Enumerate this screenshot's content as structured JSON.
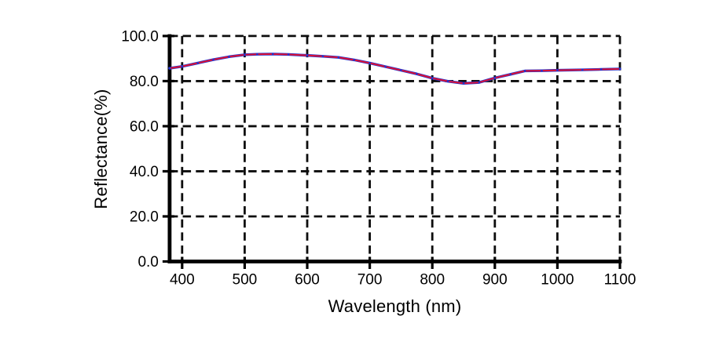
{
  "chart_data": {
    "type": "line",
    "title": "",
    "xlabel": "Wavelength (nm)",
    "ylabel": "Reflectance(%)",
    "xlim": [
      380,
      1100
    ],
    "ylim": [
      0,
      100
    ],
    "x_ticks": [
      400,
      500,
      600,
      700,
      800,
      900,
      1000,
      1100
    ],
    "x_tick_labels": [
      "400",
      "500",
      "600",
      "700",
      "800",
      "900",
      "1000",
      "1100"
    ],
    "y_ticks": [
      0,
      20,
      40,
      60,
      80,
      100
    ],
    "y_tick_labels": [
      "0.0",
      "20.0",
      "40.0",
      "60.0",
      "80.0",
      "100.0"
    ],
    "grid": {
      "style": "dashed",
      "color": "#0d0d0d"
    },
    "axes_color": "#000000",
    "background": "#ffffff",
    "legend": {
      "visible": false
    },
    "x": [
      380,
      400,
      425,
      450,
      475,
      500,
      520,
      545,
      570,
      600,
      625,
      650,
      675,
      700,
      725,
      750,
      775,
      800,
      825,
      850,
      875,
      900,
      925,
      948,
      975,
      1000,
      1040,
      1070,
      1100
    ],
    "series": [
      {
        "name": "reflectance-curve-blue",
        "color": "#2633cc",
        "line_style": "solid",
        "line_width": 3.4,
        "values": [
          85.7,
          86.5,
          88.0,
          89.5,
          90.8,
          91.7,
          91.9,
          92.0,
          91.8,
          91.4,
          91.0,
          90.5,
          89.4,
          88.0,
          86.4,
          84.8,
          83.2,
          81.3,
          79.9,
          79.0,
          79.4,
          81.4,
          83.0,
          84.5,
          84.6,
          84.8,
          85.0,
          85.2,
          85.4
        ]
      },
      {
        "name": "reflectance-curve-red",
        "color": "#e01030",
        "line_style": "solid",
        "line_width": 1.9,
        "values": [
          85.7,
          86.5,
          88.0,
          89.5,
          90.8,
          91.7,
          91.9,
          92.0,
          91.8,
          91.4,
          91.0,
          90.5,
          89.4,
          88.0,
          86.4,
          84.8,
          83.2,
          81.3,
          79.9,
          79.0,
          79.4,
          81.4,
          83.0,
          84.5,
          84.6,
          84.8,
          85.0,
          85.2,
          85.4
        ]
      }
    ]
  }
}
